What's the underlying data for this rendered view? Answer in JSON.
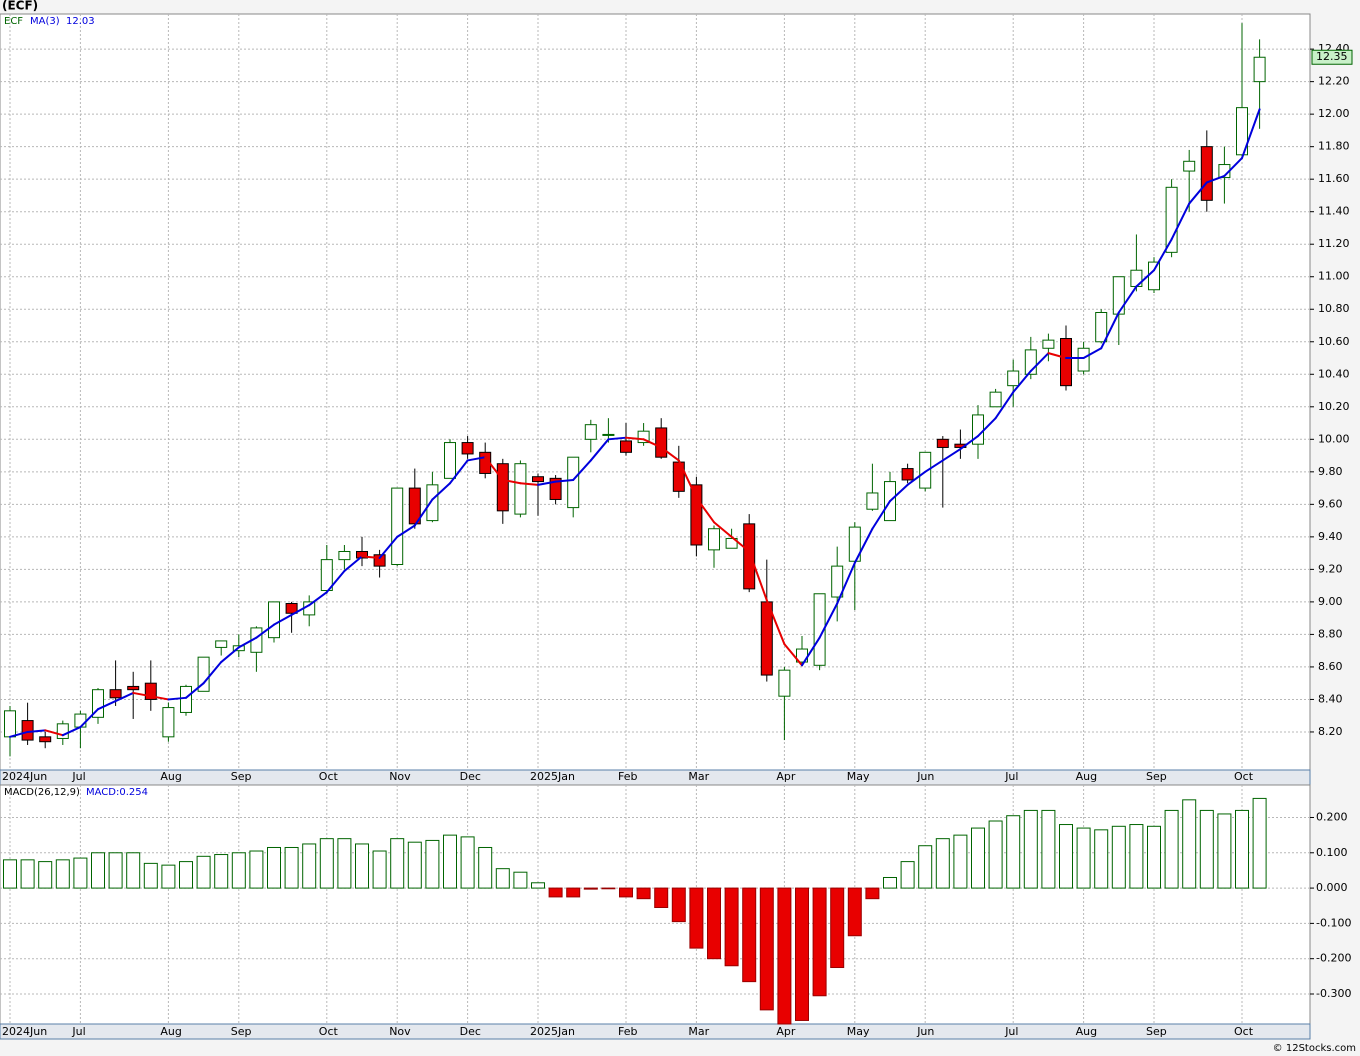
{
  "chart_data": {
    "type": "candlestick",
    "title": "(ECF)",
    "symbol": "ECF",
    "ma_label": "MA(3)",
    "ma_last": 12.03,
    "last_price": {
      "value": 12.35,
      "label": "12.35"
    },
    "up_color": "#006400",
    "down_color": "#e80000",
    "ma_up_color": "#0000dd",
    "ma_down_color": "#e80000",
    "xticks": [
      {
        "value": 0,
        "label": "2024Jun"
      },
      {
        "value": 4,
        "label": "Jul"
      },
      {
        "value": 9,
        "label": "Aug"
      },
      {
        "value": 13,
        "label": "Sep"
      },
      {
        "value": 18,
        "label": "Oct"
      },
      {
        "value": 22,
        "label": "Nov"
      },
      {
        "value": 26,
        "label": "Dec"
      },
      {
        "value": 30,
        "label": "2025Jan"
      },
      {
        "value": 35,
        "label": "Feb"
      },
      {
        "value": 39,
        "label": "Mar"
      },
      {
        "value": 44,
        "label": "Apr"
      },
      {
        "value": 48,
        "label": "May"
      },
      {
        "value": 52,
        "label": "Jun"
      },
      {
        "value": 57,
        "label": "Jul"
      },
      {
        "value": 61,
        "label": "Aug"
      },
      {
        "value": 65,
        "label": "Sep"
      },
      {
        "value": 70,
        "label": "Oct"
      }
    ],
    "ylim": [
      7.966,
      12.616
    ],
    "yticks": [
      {
        "value": 8.2,
        "label": "8.20"
      },
      {
        "value": 8.4,
        "label": "8.40"
      },
      {
        "value": 8.6,
        "label": "8.60"
      },
      {
        "value": 8.8,
        "label": "8.80"
      },
      {
        "value": 9.0,
        "label": "9.00"
      },
      {
        "value": 9.2,
        "label": "9.20"
      },
      {
        "value": 9.4,
        "label": "9.40"
      },
      {
        "value": 9.6,
        "label": "9.60"
      },
      {
        "value": 9.8,
        "label": "9.80"
      },
      {
        "value": 10.0,
        "label": "10.00"
      },
      {
        "value": 10.2,
        "label": "10.20"
      },
      {
        "value": 10.4,
        "label": "10.40"
      },
      {
        "value": 10.6,
        "label": "10.60"
      },
      {
        "value": 10.8,
        "label": "10.80"
      },
      {
        "value": 11.0,
        "label": "11.00"
      },
      {
        "value": 11.2,
        "label": "11.20"
      },
      {
        "value": 11.4,
        "label": "11.40"
      },
      {
        "value": 11.6,
        "label": "11.60"
      },
      {
        "value": 11.8,
        "label": "11.80"
      },
      {
        "value": 12.0,
        "label": "12.00"
      },
      {
        "value": 12.2,
        "label": "12.20"
      },
      {
        "value": 12.4,
        "label": "12.40"
      }
    ],
    "open": [
      8.17,
      8.27,
      8.17,
      8.16,
      8.23,
      8.29,
      8.46,
      8.48,
      8.5,
      8.17,
      8.32,
      8.45,
      8.72,
      8.7,
      8.69,
      8.78,
      8.99,
      8.92,
      9.07,
      9.26,
      9.31,
      9.29,
      9.23,
      9.7,
      9.5,
      9.76,
      9.98,
      9.92,
      9.85,
      9.54,
      9.77,
      9.76,
      9.58,
      10.0,
      10.03,
      9.99,
      9.98,
      10.07,
      9.86,
      9.72,
      9.32,
      9.33,
      9.48,
      9.0,
      8.42,
      8.63,
      8.61,
      9.03,
      9.25,
      9.57,
      9.5,
      9.82,
      9.7,
      10.0,
      9.97,
      9.97,
      10.2,
      10.33,
      10.4,
      10.56,
      10.62,
      10.42,
      10.6,
      10.77,
      10.94,
      10.92,
      11.15,
      11.65,
      11.8,
      11.61,
      11.75,
      12.2
    ],
    "high": [
      8.36,
      8.38,
      8.2,
      8.27,
      8.33,
      8.47,
      8.64,
      8.57,
      8.64,
      8.38,
      8.49,
      8.66,
      8.76,
      8.8,
      8.85,
      9.0,
      9.0,
      9.04,
      9.35,
      9.35,
      9.4,
      9.32,
      9.7,
      9.82,
      9.8,
      10.0,
      10.02,
      9.98,
      9.88,
      9.87,
      9.79,
      9.78,
      9.89,
      10.12,
      10.13,
      10.1,
      10.1,
      10.13,
      9.96,
      9.77,
      9.47,
      9.45,
      9.54,
      9.26,
      8.6,
      8.79,
      9.05,
      9.34,
      9.49,
      9.85,
      9.8,
      9.85,
      9.92,
      10.02,
      10.06,
      10.21,
      10.31,
      10.49,
      10.63,
      10.65,
      10.7,
      10.6,
      10.8,
      11.0,
      11.26,
      11.12,
      11.6,
      11.78,
      11.9,
      11.8,
      12.56,
      12.46
    ],
    "low": [
      8.05,
      8.12,
      8.1,
      8.12,
      8.1,
      8.25,
      8.36,
      8.28,
      8.33,
      8.14,
      8.3,
      8.45,
      8.67,
      8.66,
      8.57,
      8.75,
      8.81,
      8.85,
      9.05,
      9.2,
      9.22,
      9.15,
      9.22,
      9.45,
      9.49,
      9.76,
      9.88,
      9.76,
      9.48,
      9.52,
      9.53,
      9.6,
      9.52,
      9.92,
      9.98,
      9.9,
      9.96,
      9.88,
      9.64,
      9.28,
      9.21,
      9.33,
      9.06,
      8.51,
      8.15,
      8.61,
      8.58,
      8.88,
      8.95,
      9.56,
      9.5,
      9.73,
      9.68,
      9.58,
      9.88,
      9.88,
      10.2,
      10.2,
      10.37,
      10.48,
      10.3,
      10.4,
      10.59,
      10.58,
      10.91,
      10.9,
      11.12,
      11.4,
      11.4,
      11.45,
      11.74,
      11.91
    ],
    "close": [
      8.33,
      8.15,
      8.14,
      8.25,
      8.31,
      8.46,
      8.41,
      8.46,
      8.4,
      8.35,
      8.48,
      8.66,
      8.76,
      8.73,
      8.84,
      9.0,
      8.93,
      9.0,
      9.26,
      9.31,
      9.27,
      9.22,
      9.7,
      9.48,
      9.72,
      9.98,
      9.91,
      9.79,
      9.56,
      9.85,
      9.74,
      9.63,
      9.89,
      10.09,
      10.03,
      9.92,
      10.05,
      9.89,
      9.68,
      9.35,
      9.45,
      9.39,
      9.08,
      8.55,
      8.58,
      8.71,
      9.05,
      9.22,
      9.46,
      9.67,
      9.74,
      9.75,
      9.92,
      9.95,
      9.95,
      10.15,
      10.29,
      10.42,
      10.55,
      10.61,
      10.33,
      10.56,
      10.78,
      11.0,
      11.04,
      11.09,
      11.55,
      11.71,
      11.47,
      11.69,
      12.04,
      12.35
    ],
    "ma": [
      8.17,
      8.2,
      8.21,
      8.18,
      8.23,
      8.34,
      8.39,
      8.44,
      8.42,
      8.4,
      8.41,
      8.5,
      8.63,
      8.72,
      8.78,
      8.86,
      8.92,
      8.98,
      9.06,
      9.19,
      9.28,
      9.27,
      9.4,
      9.47,
      9.63,
      9.73,
      9.87,
      9.89,
      9.75,
      9.73,
      9.72,
      9.74,
      9.75,
      9.87,
      10.0,
      10.01,
      10.0,
      9.95,
      9.87,
      9.64,
      9.49,
      9.4,
      9.31,
      9.01,
      8.74,
      8.61,
      8.78,
      8.99,
      9.24,
      9.45,
      9.62,
      9.72,
      9.8,
      9.87,
      9.94,
      10.02,
      10.13,
      10.29,
      10.42,
      10.53,
      10.5,
      10.5,
      10.56,
      10.78,
      10.94,
      11.04,
      11.23,
      11.45,
      11.58,
      11.62,
      11.73,
      12.03
    ],
    "macd_label": "MACD(26,12,9)",
    "macd_last_label": "MACD:0.254",
    "macd_ylim": [
      -0.385,
      0.292
    ],
    "macd_yticks": [
      {
        "value": 0.2,
        "label": "0.200"
      },
      {
        "value": 0.1,
        "label": "0.100"
      },
      {
        "value": 0,
        "label": "0.000"
      },
      {
        "value": -0.1,
        "label": "-0.100"
      },
      {
        "value": -0.2,
        "label": "-0.200"
      },
      {
        "value": -0.3,
        "label": "-0.300"
      }
    ],
    "macd": [
      0.08,
      0.08,
      0.075,
      0.08,
      0.085,
      0.1,
      0.1,
      0.1,
      0.07,
      0.065,
      0.075,
      0.09,
      0.095,
      0.1,
      0.105,
      0.115,
      0.115,
      0.125,
      0.14,
      0.14,
      0.125,
      0.105,
      0.14,
      0.13,
      0.135,
      0.15,
      0.145,
      0.115,
      0.055,
      0.045,
      0.015,
      -0.025,
      -0.025,
      -0.003,
      -0.002,
      -0.025,
      -0.03,
      -0.055,
      -0.095,
      -0.17,
      -0.2,
      -0.22,
      -0.265,
      -0.345,
      -0.385,
      -0.375,
      -0.305,
      -0.225,
      -0.135,
      -0.03,
      0.03,
      0.075,
      0.12,
      0.14,
      0.15,
      0.17,
      0.19,
      0.205,
      0.22,
      0.22,
      0.18,
      0.17,
      0.165,
      0.175,
      0.18,
      0.175,
      0.22,
      0.25,
      0.22,
      0.21,
      0.22,
      0.254
    ],
    "footer": "© 12Stocks.com"
  }
}
